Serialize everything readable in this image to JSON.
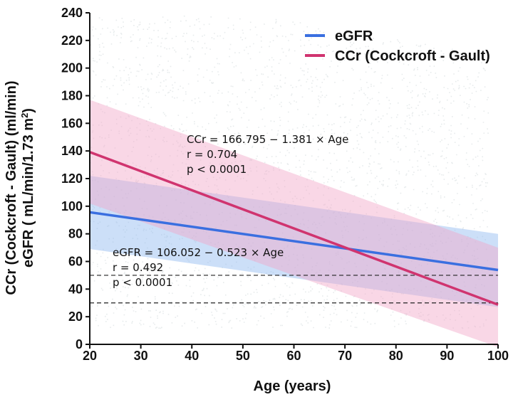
{
  "chart_data": {
    "type": "line",
    "xlabel": "Age (years)",
    "ylabel_line1": "CCr (Cockcroft - Gault) (ml/min)",
    "ylabel_line2_pre": "eGFR ( mL/min/1.73 m",
    "ylabel_line2_sup": "2",
    "ylabel_line2_post": ")",
    "xlim": [
      20,
      100
    ],
    "ylim": [
      0,
      240
    ],
    "x_ticks": [
      "20",
      "30",
      "40",
      "50",
      "60",
      "70",
      "80",
      "90",
      "100"
    ],
    "y_ticks": [
      "0",
      "20",
      "40",
      "60",
      "80",
      "100",
      "120",
      "140",
      "160",
      "180",
      "200",
      "220",
      "240"
    ],
    "legend_position": "top-right",
    "series": [
      {
        "name": "eGFR",
        "color": "#3a6fe0",
        "band_color": "#8fb8f0",
        "intercept": 106.052,
        "slope": -0.523,
        "x": [
          20,
          100
        ],
        "y": [
          95.6,
          53.8
        ],
        "band_upper": [
          122,
          80
        ],
        "band_lower": [
          69,
          27
        ]
      },
      {
        "name": "CCr (Cockcroft - Gault)",
        "color": "#d0346f",
        "band_color": "#f2a6c8",
        "intercept": 166.795,
        "slope": -1.381,
        "x": [
          20,
          100
        ],
        "y": [
          139.2,
          28.7
        ],
        "band_upper": [
          177,
          70
        ],
        "band_lower": [
          102,
          -2
        ]
      }
    ],
    "annotations": [
      {
        "lines": [
          "CCr = 166.795 − 1.381 × Age",
          "r = 0.704",
          "p < 0.0001"
        ]
      },
      {
        "lines": [
          "eGFR = 106.052 − 0.523 × Age",
          "r = 0.492",
          "p < 0.0001"
        ]
      }
    ],
    "reference_lines": [
      50,
      30
    ]
  }
}
